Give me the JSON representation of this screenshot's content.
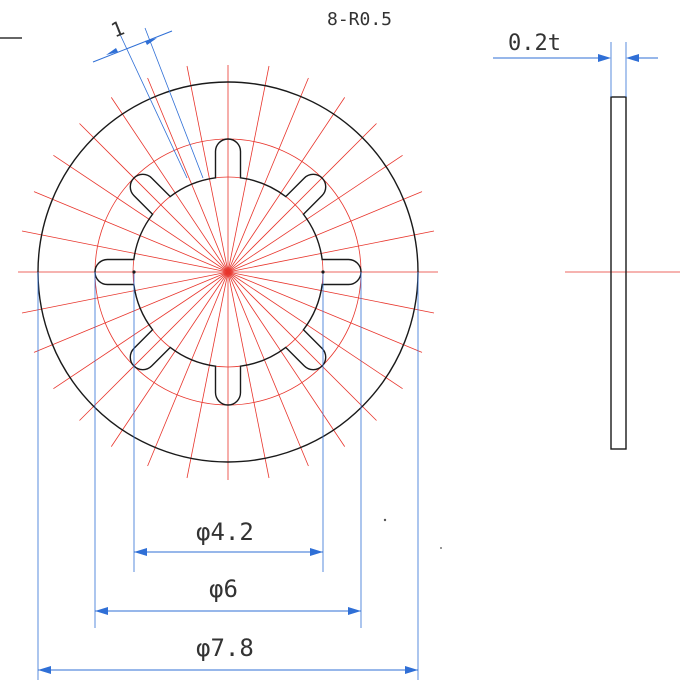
{
  "drawing": {
    "dimensions": {
      "radius_note": "8-R0.5",
      "thickness": "0.2t",
      "tooth_width": "1",
      "inner_diameter": "φ4.2",
      "tooth_diameter": "φ6",
      "outer_diameter": "φ7.8"
    },
    "colors": {
      "outline": "#1a1a1a",
      "center_lines": "#e8352c",
      "dimension_lines": "#2f6fd6",
      "text": "#333333"
    },
    "tooth_count": 8
  }
}
